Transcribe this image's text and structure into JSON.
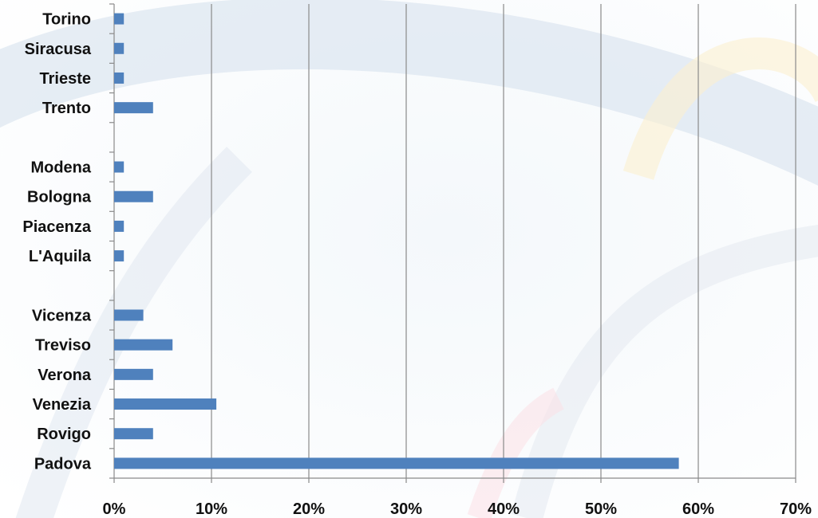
{
  "chart_data": {
    "type": "bar",
    "orientation": "horizontal",
    "title": "",
    "xlabel": "",
    "ylabel": "",
    "xlim": [
      0,
      70
    ],
    "x_ticks": [
      "0%",
      "10%",
      "20%",
      "30%",
      "40%",
      "50%",
      "60%",
      "70%"
    ],
    "grid": "vertical",
    "legend": "none",
    "bar_color": "#4f81bd",
    "categories": [
      "Torino",
      "Siracusa",
      "Trieste",
      "Trento",
      "",
      "Modena",
      "Bologna",
      "Piacenza",
      "L'Aquila",
      "",
      "Vicenza",
      "Treviso",
      "Verona",
      "Venezia",
      "Rovigo",
      "Padova"
    ],
    "values": [
      1,
      1,
      1,
      4,
      null,
      1,
      4,
      1,
      1,
      null,
      3,
      6,
      4,
      10.5,
      4,
      58
    ]
  }
}
